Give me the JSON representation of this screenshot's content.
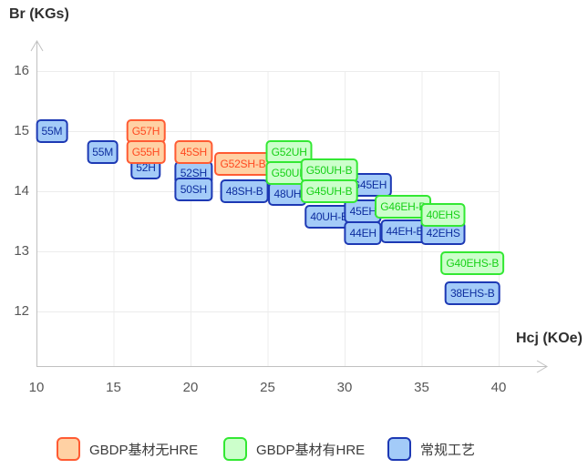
{
  "chart_data": {
    "type": "scatter",
    "title": "",
    "ylabel": "Br (KGs)",
    "xlabel": "Hcj (KOe)",
    "x_ticks": [
      10,
      15,
      20,
      25,
      30,
      35,
      40
    ],
    "y_ticks": [
      12,
      13,
      14,
      15,
      16
    ],
    "xlim": [
      10,
      43.3
    ],
    "ylim": [
      11.1,
      16.5
    ],
    "grid": true,
    "legend_position": "bottom",
    "axis_color": "#c0c0c0",
    "grid_color": "#ececec",
    "tick_color": "#575757",
    "series": [
      {
        "name": "GBDP基材无HRE",
        "color_fill": "#ffd1a4",
        "color_border": "#ff5b33",
        "color_text": "#ff4a21",
        "points": [
          {
            "label": "G57H",
            "x": 17.1,
            "y": 15.0
          },
          {
            "label": "G55H",
            "x": 17.1,
            "y": 14.65
          },
          {
            "label": "45SH",
            "x": 20.2,
            "y": 14.65
          },
          {
            "label": "G52SH-B",
            "x": 23.4,
            "y": 14.45
          }
        ]
      },
      {
        "name": "GBDP基材有HRE",
        "color_fill": "#ccffcb",
        "color_border": "#33e833",
        "color_text": "#17d117",
        "points": [
          {
            "label": "G52UH",
            "x": 26.4,
            "y": 14.65
          },
          {
            "label": "G50UH",
            "x": 26.4,
            "y": 14.3
          },
          {
            "label": "G50UH-B",
            "x": 29.0,
            "y": 14.35
          },
          {
            "label": "G45UH-B",
            "x": 29.0,
            "y": 14.0
          },
          {
            "label": "G46EH-B",
            "x": 33.8,
            "y": 13.75
          },
          {
            "label": "40EHS",
            "x": 36.4,
            "y": 13.6
          },
          {
            "label": "G40EHS-B",
            "x": 38.3,
            "y": 12.8
          }
        ]
      },
      {
        "name": "常规工艺",
        "color_fill": "#a3cbf8",
        "color_border": "#1d39b4",
        "color_text": "#0d2d9e",
        "points": [
          {
            "label": "55M",
            "x": 11.0,
            "y": 15.0
          },
          {
            "label": "55M",
            "x": 14.3,
            "y": 14.65
          },
          {
            "label": "52H",
            "x": 17.1,
            "y": 14.4
          },
          {
            "label": "52SH",
            "x": 20.2,
            "y": 14.3
          },
          {
            "label": "50SH",
            "x": 20.2,
            "y": 14.03
          },
          {
            "label": "48SH-B",
            "x": 23.5,
            "y": 14.0
          },
          {
            "label": "48UH",
            "x": 26.3,
            "y": 13.95
          },
          {
            "label": "40UH-B",
            "x": 29.0,
            "y": 13.58
          },
          {
            "label": "G45EH",
            "x": 31.6,
            "y": 14.1
          },
          {
            "label": "45EH",
            "x": 31.2,
            "y": 13.67
          },
          {
            "label": "44EH",
            "x": 31.2,
            "y": 13.3
          },
          {
            "label": "44EH-B",
            "x": 33.9,
            "y": 13.33
          },
          {
            "label": "42EHS",
            "x": 36.4,
            "y": 13.3
          },
          {
            "label": "38EHS-B",
            "x": 38.3,
            "y": 12.3
          }
        ]
      }
    ]
  }
}
